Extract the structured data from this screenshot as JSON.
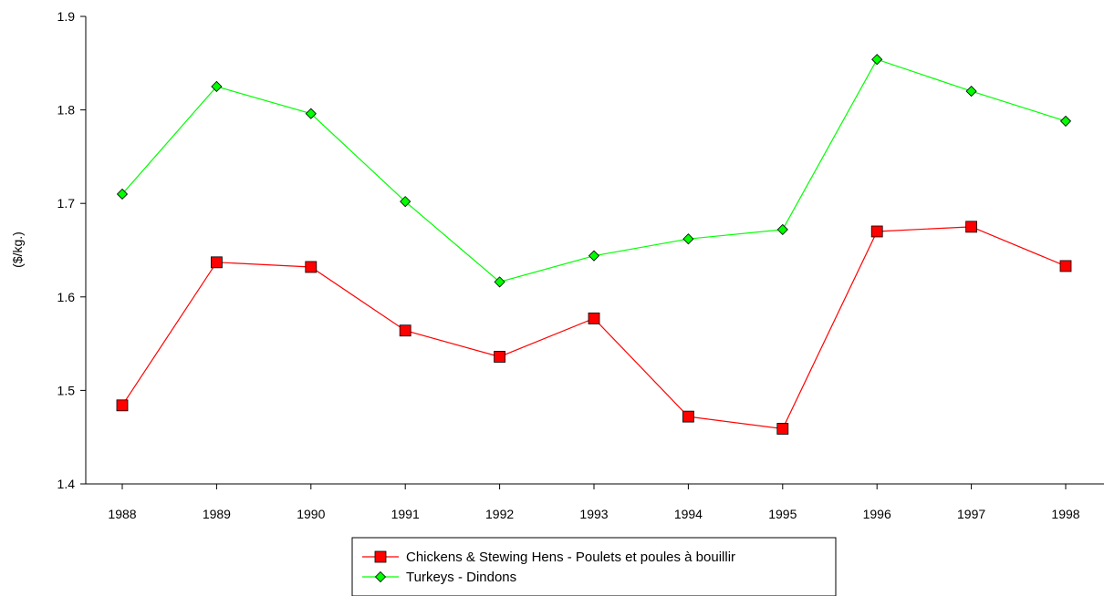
{
  "chart_data": {
    "type": "line",
    "title": "",
    "xlabel": "",
    "ylabel": "($/kg.)",
    "x": [
      "1988",
      "1989",
      "1990",
      "1991",
      "1992",
      "1993",
      "1994",
      "1995",
      "1996",
      "1997",
      "1998"
    ],
    "ylim": [
      1.4,
      1.9
    ],
    "yticks": [
      "1.4",
      "1.5",
      "1.6",
      "1.7",
      "1.8",
      "1.9"
    ],
    "grid": false,
    "legend_position": "bottom-center",
    "series": [
      {
        "name": "Chickens & Stewing Hens - Poulets et poules à bouillir",
        "color": "#ff0000",
        "marker": "square",
        "values": [
          1.484,
          1.637,
          1.632,
          1.564,
          1.536,
          1.577,
          1.472,
          1.459,
          1.67,
          1.675,
          1.633
        ]
      },
      {
        "name": "Turkeys - Dindons",
        "color": "#00ff00",
        "marker": "diamond",
        "values": [
          1.71,
          1.825,
          1.796,
          1.702,
          1.616,
          1.644,
          1.662,
          1.672,
          1.854,
          1.82,
          1.788
        ]
      }
    ]
  }
}
